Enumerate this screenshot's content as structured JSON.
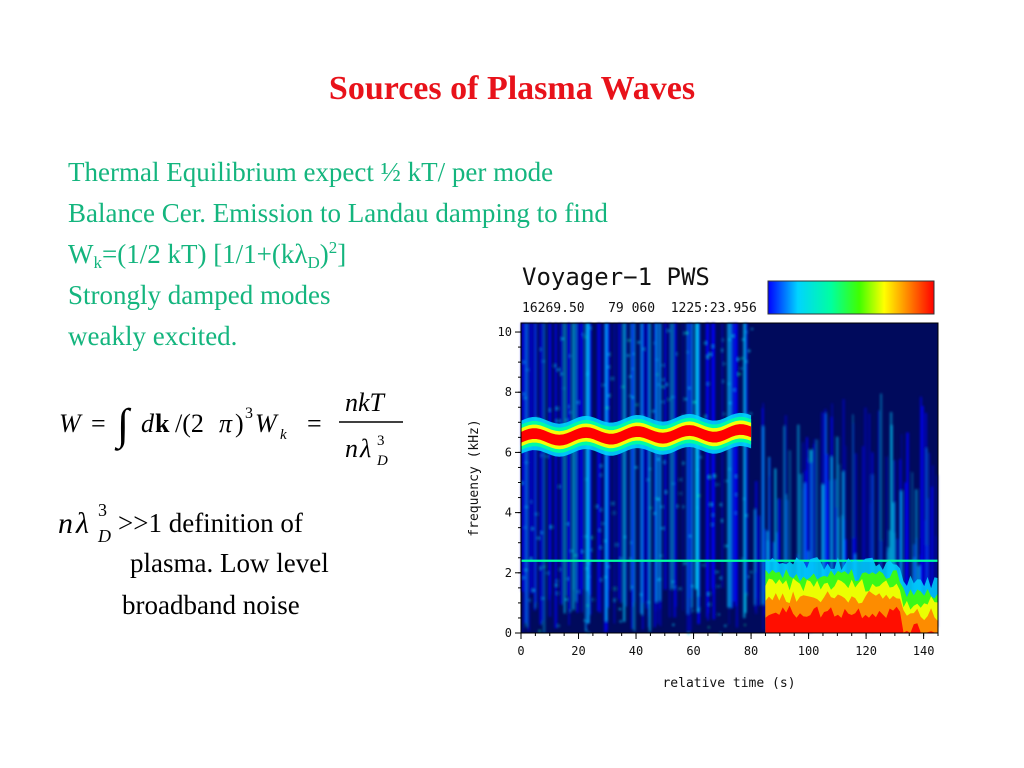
{
  "slide": {
    "title": "Sources of Plasma Waves",
    "bullets": {
      "line1": "Thermal Equilibrium expect ½ kT/ per mode",
      "line2": "Balance Cer. Emission to Landau damping to find",
      "line3_W": "W",
      "line3_k": "k",
      "line3_mid": "=(1/2 kT) [1/1+(k",
      "line3_lambda": "λ",
      "line3_D": "D",
      "line3_close": ")",
      "line3_sup": "2",
      "line3_end": "]",
      "line4": "Strongly damped modes",
      "line5": "weakly excited."
    },
    "equation": {
      "W": "W",
      "eq1": "=",
      "integral": "∫",
      "d": "d",
      "k": "k",
      "slash": "/(2",
      "pi": "π",
      "close": ")",
      "cube": "3",
      "Wk": "W",
      "Wk_sub": "k",
      "eq2": "=",
      "numerator": "nkT",
      "denominator_n": "n",
      "denominator_lambda": "λ",
      "denominator_sup": "3",
      "denominator_sub": "D"
    },
    "criterion": {
      "n": "n",
      "lambda": "λ",
      "sup": "3",
      "sub": "D",
      "rest": ">>1 definition of",
      "line2": "plasma. Low level",
      "line3": "broadband noise"
    }
  },
  "plot": {
    "title": "Voyager−1 PWS",
    "header_info": "16269.50   79 060  1225:23.956",
    "colors": [
      "#0000ff",
      "#00d4ff",
      "#00ffa0",
      "#40ff00",
      "#ffff00",
      "#ff8000",
      "#ff0000"
    ],
    "ylabel": "frequency (kHz)",
    "xlabel": "relative time (s)",
    "y_ticks": [
      "0",
      "2",
      "4",
      "6",
      "8",
      "10"
    ],
    "x_ticks": [
      "0",
      "20",
      "40",
      "60",
      "80",
      "100",
      "120",
      "140"
    ]
  },
  "chart_data": {
    "type": "heatmap",
    "title": "Voyager−1 PWS",
    "xlabel": "relative time (s)",
    "ylabel": "frequency (kHz)",
    "xlim": [
      0,
      145
    ],
    "ylim": [
      0,
      10.3
    ],
    "x_ticks": [
      0,
      20,
      40,
      60,
      80,
      100,
      120,
      140
    ],
    "y_ticks": [
      0,
      2,
      4,
      6,
      8,
      10
    ],
    "features": [
      {
        "x_range": [
          0,
          80
        ],
        "frequency_center": 6.5,
        "intensity": "high"
      },
      {
        "x_range": [
          0,
          145
        ],
        "frequency_center": 2.4,
        "intensity": "medium"
      },
      {
        "x_range": [
          85,
          145
        ],
        "frequency_range": [
          0,
          2.2
        ],
        "intensity": "high"
      }
    ]
  }
}
